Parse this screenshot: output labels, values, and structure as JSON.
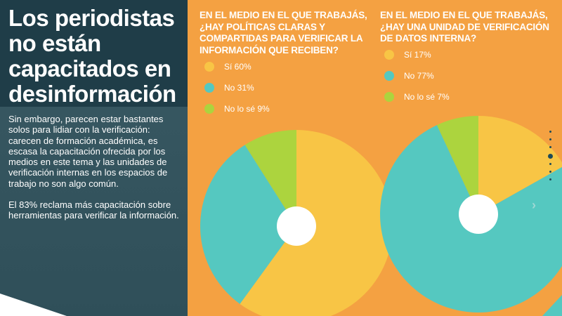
{
  "left_panel": {
    "title": "Los periodistas no están capacitados en desinformación",
    "paragraph1": "Sin embargo, parecen estar bastantes solos para lidiar con la verificación: carecen de formación académica, es escasa la capacitación ofrecida por los medios en este tema y las unidades de verificación internas en los espacios de trabajo no son algo común.",
    "paragraph2": "El 83% reclama más capacitación sobre herramientas para verificar la información."
  },
  "colors": {
    "background": "#f4a142",
    "panel": "#35555f",
    "title_bg": "#1f3d48",
    "yes": "#f8c545",
    "no": "#55c8c0",
    "dont_know": "#acd43e"
  },
  "chart_data": [
    {
      "type": "pie",
      "title": "EN EL MEDIO EN EL QUE TRABAJÁS, ¿HAY POLÍTICAS CLARAS Y COMPARTIDAS PARA VERIFICAR LA INFORMACIÓN QUE RECIBEN?",
      "categories": [
        "Sí",
        "No",
        "No lo sé"
      ],
      "values": [
        60,
        31,
        9
      ],
      "legend": [
        "Sí 60%",
        "No 31%",
        "No lo sé 9%"
      ],
      "legend_position": "top-left"
    },
    {
      "type": "pie",
      "title": "EN EL MEDIO EN EL QUE TRABAJÁS, ¿HAY UNA UNIDAD DE VERIFICACIÓN DE DATOS INTERNA?",
      "categories": [
        "Sí",
        "No",
        "No lo sé"
      ],
      "values": [
        17,
        77,
        7
      ],
      "legend": [
        "Sí 17%",
        "No 77%",
        "No lo sé 7%"
      ],
      "legend_position": "top-left"
    }
  ],
  "pager": {
    "count": 7,
    "active": 4,
    "next_icon": "chevron-right-icon"
  }
}
